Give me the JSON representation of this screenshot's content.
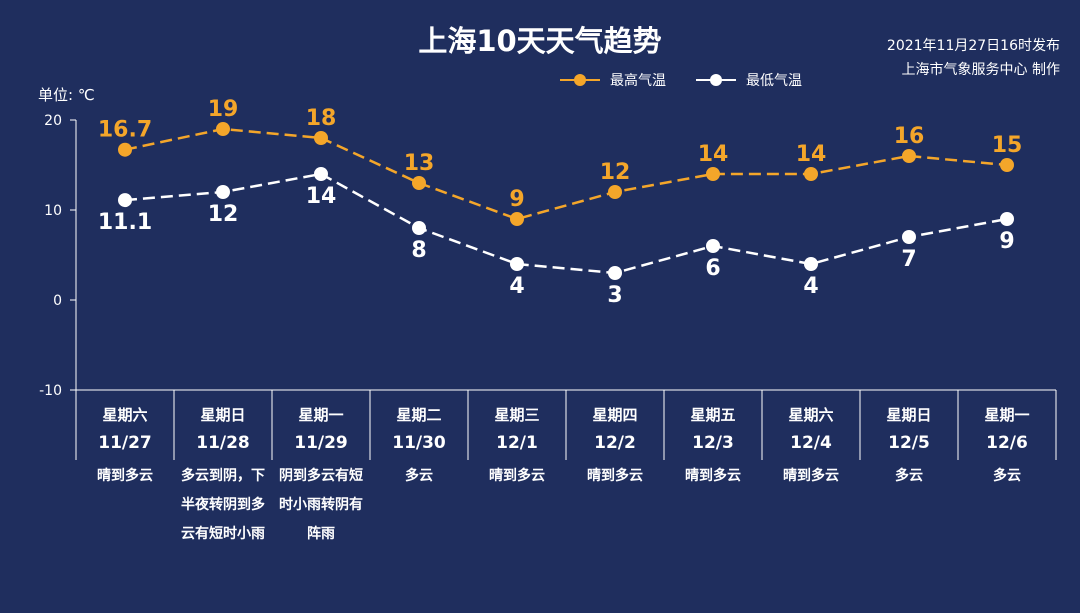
{
  "title": "上海10天天气趋势",
  "publish": {
    "line1": "2021年11月27日16时发布",
    "line2": "上海市气象服务中心 制作"
  },
  "unit_label": "单位: ℃",
  "legend": {
    "high": "最高气温",
    "low": "最低气温"
  },
  "colors": {
    "background": "#1f2e5e",
    "high": "#f4a62a",
    "low": "#ffffff",
    "axis": "#ffffff"
  },
  "chart_data": {
    "type": "line",
    "ylim": [
      -10,
      20
    ],
    "yticks": [
      "20",
      "10",
      "0",
      "-10"
    ],
    "categories": [
      "11/27",
      "11/28",
      "11/29",
      "11/30",
      "12/1",
      "12/2",
      "12/3",
      "12/4",
      "12/5",
      "12/6"
    ],
    "weekdays": [
      "星期六",
      "星期日",
      "星期一",
      "星期二",
      "星期三",
      "星期四",
      "星期五",
      "星期六",
      "星期日",
      "星期一"
    ],
    "conditions": [
      "晴到多云",
      "多云到阴，下半夜转阴到多云有短时小雨",
      "阴到多云有短时小雨转阴有阵雨",
      "多云",
      "晴到多云",
      "晴到多云",
      "晴到多云",
      "晴到多云",
      "多云",
      "多云"
    ],
    "series": [
      {
        "name": "最高气温",
        "values": [
          16.7,
          19,
          18,
          13,
          9,
          12,
          14,
          14,
          16,
          15
        ],
        "labels": [
          "16.7",
          "19",
          "18",
          "13",
          "9",
          "12",
          "14",
          "14",
          "16",
          "15"
        ]
      },
      {
        "name": "最低气温",
        "values": [
          11.1,
          12,
          14,
          8,
          4,
          3,
          6,
          4,
          7,
          9
        ],
        "labels": [
          "11.1",
          "12",
          "14",
          "8",
          "4",
          "3",
          "6",
          "4",
          "7",
          "9"
        ]
      }
    ]
  }
}
